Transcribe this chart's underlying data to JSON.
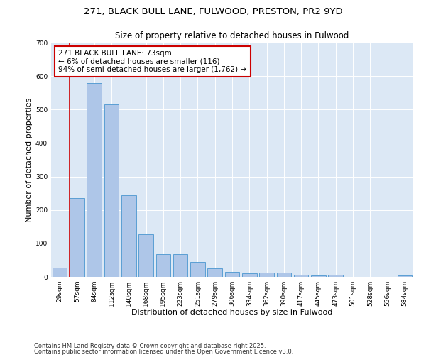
{
  "title1": "271, BLACK BULL LANE, FULWOOD, PRESTON, PR2 9YD",
  "title2": "Size of property relative to detached houses in Fulwood",
  "xlabel": "Distribution of detached houses by size in Fulwood",
  "ylabel": "Number of detached properties",
  "categories": [
    "29sqm",
    "57sqm",
    "84sqm",
    "112sqm",
    "140sqm",
    "168sqm",
    "195sqm",
    "223sqm",
    "251sqm",
    "279sqm",
    "306sqm",
    "334sqm",
    "362sqm",
    "390sqm",
    "417sqm",
    "445sqm",
    "473sqm",
    "501sqm",
    "528sqm",
    "556sqm",
    "584sqm"
  ],
  "values": [
    28,
    235,
    580,
    515,
    243,
    128,
    68,
    68,
    45,
    25,
    15,
    10,
    13,
    13,
    6,
    5,
    7,
    0,
    0,
    0,
    5
  ],
  "bar_color": "#aec6e8",
  "bar_edge_color": "#5a9fd4",
  "vline_color": "#cc0000",
  "annotation_text": "271 BLACK BULL LANE: 73sqm\n← 6% of detached houses are smaller (116)\n94% of semi-detached houses are larger (1,762) →",
  "annotation_box_color": "#ffffff",
  "annotation_box_edge": "#cc0000",
  "ylim": [
    0,
    700
  ],
  "yticks": [
    0,
    100,
    200,
    300,
    400,
    500,
    600,
    700
  ],
  "background_color": "#dce8f5",
  "footer1": "Contains HM Land Registry data © Crown copyright and database right 2025.",
  "footer2": "Contains public sector information licensed under the Open Government Licence v3.0.",
  "title_fontsize": 9.5,
  "subtitle_fontsize": 8.5,
  "xlabel_fontsize": 8,
  "ylabel_fontsize": 8,
  "tick_fontsize": 6.5,
  "annotation_fontsize": 7.5,
  "footer_fontsize": 6
}
